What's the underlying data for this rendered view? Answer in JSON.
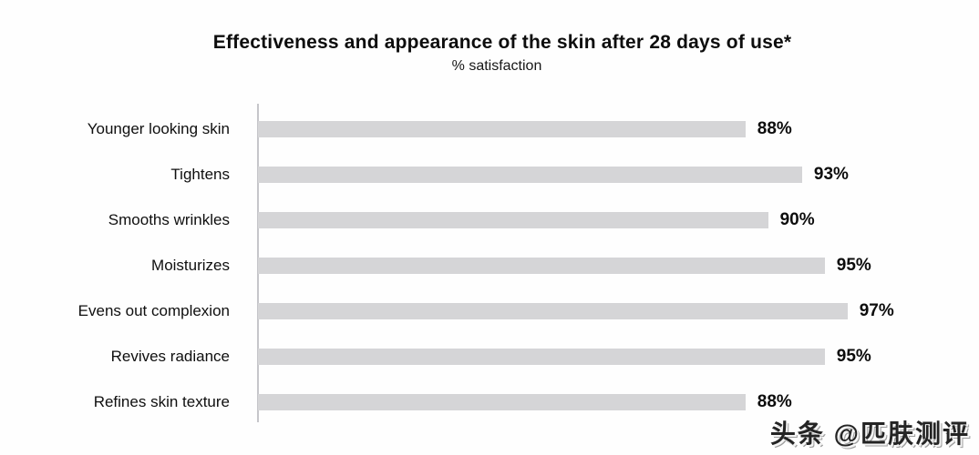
{
  "page": {
    "title": "Effectiveness and appearance of the skin after 28 days of use*",
    "subtitle": "% satisfaction",
    "watermark": "头条 @匹肤测评"
  },
  "chart_data": {
    "type": "bar",
    "orientation": "horizontal",
    "title": "Effectiveness and appearance of the skin after 28 days of use*",
    "subtitle": "% satisfaction",
    "categories": [
      "Younger looking skin",
      "Tightens",
      "Smooths wrinkles",
      "Moisturizes",
      "Evens out complexion",
      "Revives radiance",
      "Refines skin texture"
    ],
    "values": [
      88,
      93,
      90,
      95,
      97,
      95,
      88
    ],
    "value_labels": [
      "88%",
      "93%",
      "90%",
      "95%",
      "97%",
      "95%",
      "88%"
    ],
    "unit": "%",
    "xlabel": "",
    "ylabel": "",
    "xlim": [
      45,
      100
    ],
    "grid": false,
    "legend": false,
    "bar_color": "#d5d5d7",
    "axis_line_color": "#c6c6ca",
    "text_color": "#0d0d0d",
    "background_color": "#ffffff"
  }
}
